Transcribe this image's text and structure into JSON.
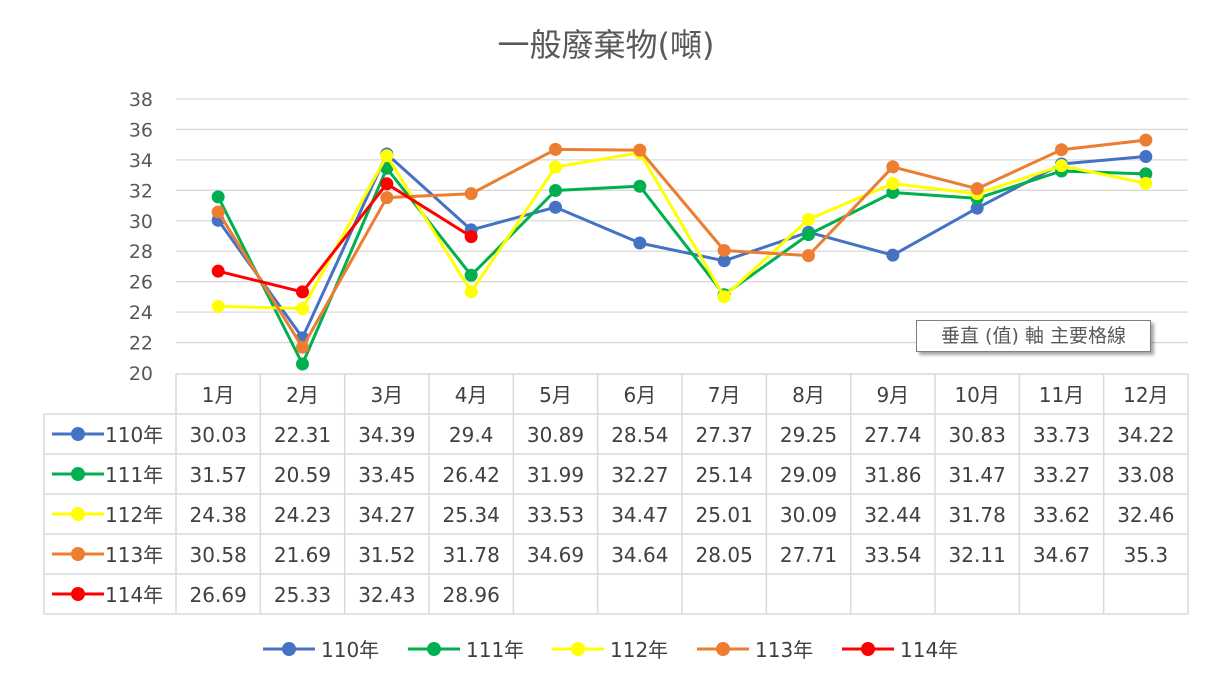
{
  "chart_data": {
    "type": "line",
    "title": "一般廢棄物(噸)",
    "categories": [
      "1月",
      "2月",
      "3月",
      "4月",
      "5月",
      "6月",
      "7月",
      "8月",
      "9月",
      "10月",
      "11月",
      "12月"
    ],
    "yticks": [
      "20",
      "22",
      "24",
      "26",
      "28",
      "30",
      "32",
      "34",
      "36",
      "38"
    ],
    "ylim": [
      20,
      38
    ],
    "grid": true,
    "legend_placement": "bottom",
    "data_table": true,
    "series": [
      {
        "name": "110年",
        "color": "#4472C4",
        "values": [
          30.03,
          22.31,
          34.39,
          29.4,
          30.89,
          28.54,
          27.37,
          29.25,
          27.74,
          30.83,
          33.73,
          34.22
        ],
        "labels": [
          "30.03",
          "22.31",
          "34.39",
          "29.4",
          "30.89",
          "28.54",
          "27.37",
          "29.25",
          "27.74",
          "30.83",
          "33.73",
          "34.22"
        ]
      },
      {
        "name": "111年",
        "color": "#00B050",
        "values": [
          31.57,
          20.59,
          33.45,
          26.42,
          31.99,
          32.27,
          25.14,
          29.09,
          31.86,
          31.47,
          33.27,
          33.08
        ],
        "labels": [
          "31.57",
          "20.59",
          "33.45",
          "26.42",
          "31.99",
          "32.27",
          "25.14",
          "29.09",
          "31.86",
          "31.47",
          "33.27",
          "33.08"
        ]
      },
      {
        "name": "112年",
        "color": "#FFFF00",
        "values": [
          24.38,
          24.23,
          34.27,
          25.34,
          33.53,
          34.47,
          25.01,
          30.09,
          32.44,
          31.78,
          33.62,
          32.46
        ],
        "labels": [
          "24.38",
          "24.23",
          "34.27",
          "25.34",
          "33.53",
          "34.47",
          "25.01",
          "30.09",
          "32.44",
          "31.78",
          "33.62",
          "32.46"
        ]
      },
      {
        "name": "113年",
        "color": "#ED7D31",
        "values": [
          30.58,
          21.69,
          31.52,
          31.78,
          34.69,
          34.64,
          28.05,
          27.71,
          33.54,
          32.11,
          34.67,
          35.3
        ],
        "labels": [
          "30.58",
          "21.69",
          "31.52",
          "31.78",
          "34.69",
          "34.64",
          "28.05",
          "27.71",
          "33.54",
          "32.11",
          "34.67",
          "35.3"
        ]
      },
      {
        "name": "114年",
        "color": "#FF0000",
        "values": [
          26.69,
          25.33,
          32.43,
          28.96,
          null,
          null,
          null,
          null,
          null,
          null,
          null,
          null
        ],
        "labels": [
          "26.69",
          "25.33",
          "32.43",
          "28.96",
          "",
          "",
          "",
          "",
          "",
          "",
          "",
          ""
        ]
      }
    ]
  },
  "tooltip": {
    "text": "垂直 (值) 軸 主要格線"
  }
}
